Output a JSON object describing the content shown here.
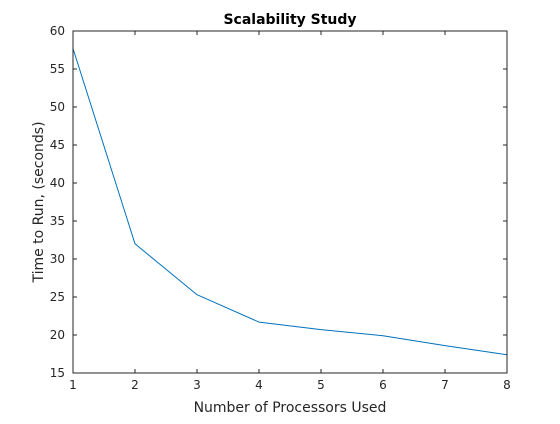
{
  "chart_data": {
    "type": "line",
    "title": "Scalability Study",
    "xlabel": "Number of Processors Used",
    "ylabel": "Time to Run, (seconds)",
    "x": [
      1,
      2,
      3,
      4,
      5,
      6,
      7,
      8
    ],
    "series": [
      {
        "values": [
          57.7,
          32.0,
          25.3,
          21.7,
          20.7,
          19.9,
          18.6,
          17.4
        ]
      }
    ],
    "xlim": [
      1,
      8
    ],
    "ylim": [
      15,
      60
    ],
    "xticks": [
      "1",
      "2",
      "3",
      "4",
      "5",
      "6",
      "7",
      "8"
    ],
    "yticks": [
      "15",
      "20",
      "25",
      "30",
      "35",
      "40",
      "45",
      "50",
      "55",
      "60"
    ],
    "grid": false,
    "line_color": "#0072BD",
    "axis_color": "#262626"
  }
}
